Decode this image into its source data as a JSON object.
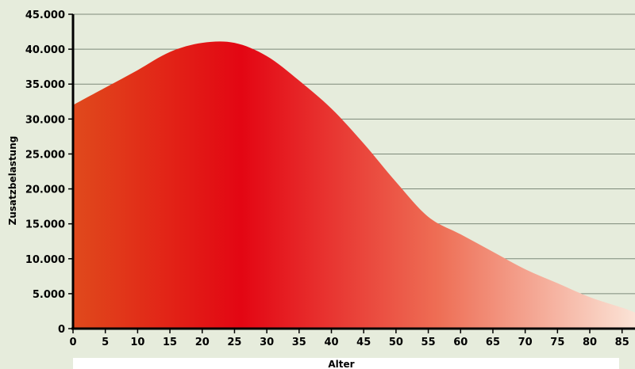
{
  "chart_data": {
    "type": "area",
    "title": "",
    "xlabel": "Alter",
    "ylabel": "Zusatzbelastung",
    "xlim": [
      0,
      87
    ],
    "ylim": [
      0,
      45000
    ],
    "grid": true,
    "x_ticks": [
      0,
      5,
      10,
      15,
      20,
      25,
      30,
      35,
      40,
      45,
      50,
      55,
      60,
      65,
      70,
      75,
      80,
      85
    ],
    "x_tick_labels": [
      "0",
      "5",
      "10",
      "15",
      "20",
      "25",
      "30",
      "35",
      "40",
      "45",
      "50",
      "55",
      "60",
      "65",
      "70",
      "75",
      "80",
      "85"
    ],
    "y_ticks": [
      0,
      5000,
      10000,
      15000,
      20000,
      25000,
      30000,
      35000,
      40000,
      45000
    ],
    "y_tick_labels": [
      "0",
      "5.000",
      "10.000",
      "15.000",
      "20.000",
      "25.000",
      "30.000",
      "35.000",
      "40.000",
      "45.000"
    ],
    "series": [
      {
        "x": [
          0,
          5,
          10,
          15,
          20,
          25,
          30,
          35,
          40,
          45,
          50,
          55,
          60,
          65,
          70,
          75,
          80,
          85,
          87
        ],
        "values": [
          32000,
          34500,
          37000,
          39600,
          40900,
          40900,
          39000,
          35500,
          31500,
          26500,
          21000,
          16000,
          13500,
          11000,
          8500,
          6500,
          4500,
          3000,
          2300
        ]
      }
    ],
    "colors": {
      "background": "#e6ecdc",
      "gradient_left": "#e04a1c",
      "gradient_peak": "#e30613",
      "gradient_right": "#fbe3d6",
      "gridline": "#7d8a7a",
      "axis": "#000000"
    }
  }
}
